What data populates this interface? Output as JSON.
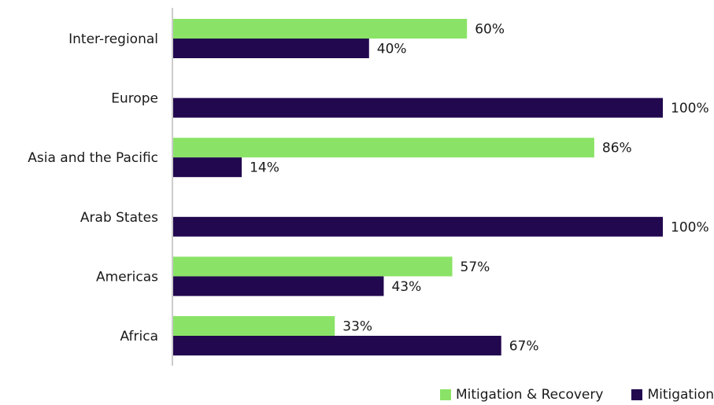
{
  "chart_data": {
    "type": "bar",
    "orientation": "horizontal",
    "categories": [
      "Inter-regional",
      "Europe",
      "Asia and the Pacific",
      "Arab States",
      "Americas",
      "Africa"
    ],
    "series": [
      {
        "name": "Mitigation & Recovery",
        "color": "#8ae366",
        "values": [
          60,
          null,
          86,
          null,
          57,
          33
        ],
        "labels": [
          "60%",
          null,
          "86%",
          null,
          "57%",
          "33%"
        ]
      },
      {
        "name": "Mitigation",
        "color": "#22084f",
        "values": [
          40,
          100,
          14,
          100,
          43,
          67
        ],
        "labels": [
          "40%",
          "100%",
          "14%",
          "100%",
          "43%",
          "67%"
        ]
      }
    ],
    "xlim": [
      0,
      100
    ],
    "grid": false,
    "legend_position": "bottom-right",
    "title": "",
    "xlabel": "",
    "ylabel": ""
  }
}
